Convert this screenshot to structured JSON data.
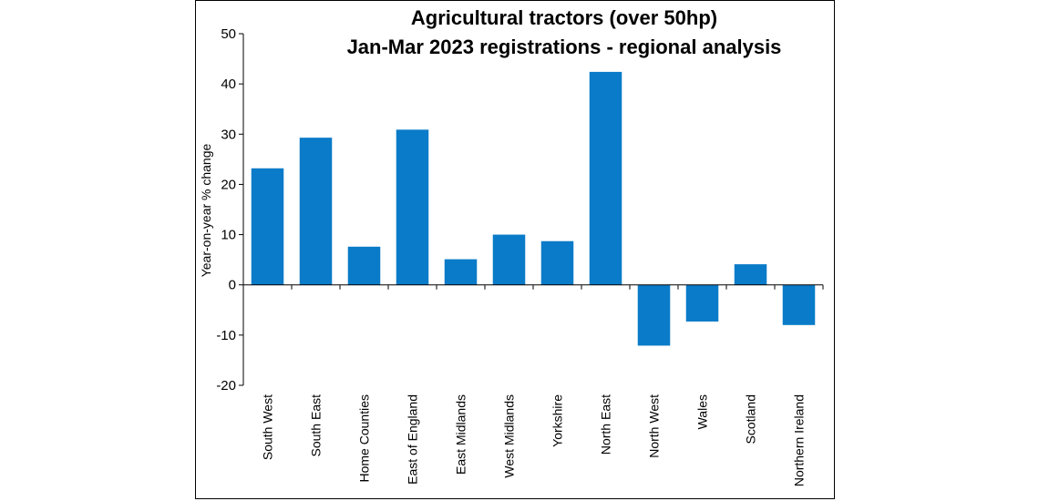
{
  "chart_data": {
    "type": "bar",
    "title_lines": [
      "Agricultural tractors (over 50hp)",
      "Jan-Mar 2023 registrations - regional analysis"
    ],
    "xlabel": "",
    "ylabel": "Year-on-year  % change",
    "categories": [
      "South West",
      "South East",
      "Home Counties",
      "East of England",
      "East Midlands",
      "West Midlands",
      "Yorkshire",
      "North East",
      "North West",
      "Wales",
      "Scotland",
      "Northern Ireland"
    ],
    "values": [
      23.2,
      29.3,
      7.6,
      30.9,
      5.1,
      10.0,
      8.7,
      42.4,
      -12.1,
      -7.3,
      4.1,
      -8.0
    ],
    "ylim": [
      -20,
      50
    ],
    "yticks": [
      -20,
      -10,
      0,
      10,
      20,
      30,
      40,
      50
    ],
    "grid": false,
    "legend": "none",
    "bar_color": "#0a7bc8"
  }
}
